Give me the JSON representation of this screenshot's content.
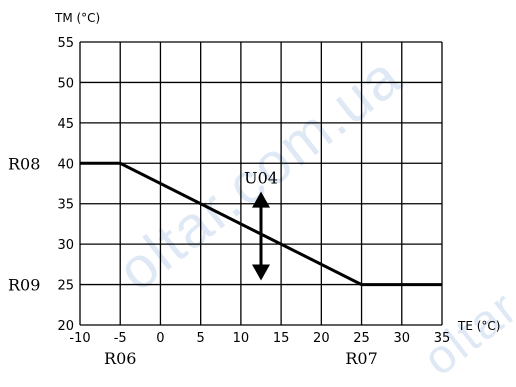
{
  "chart_data": {
    "type": "line",
    "ylabel": "TM (°C)",
    "xlabel": "TE (°C)",
    "xlim": [
      -10,
      35
    ],
    "ylim": [
      20,
      55
    ],
    "x_ticks": [
      -10,
      -5,
      0,
      5,
      10,
      15,
      20,
      25,
      30,
      35
    ],
    "y_ticks": [
      20,
      25,
      30,
      35,
      40,
      45,
      50,
      55
    ],
    "x_tick_labels": [
      "-10",
      "-5",
      "0",
      "5",
      "10",
      "15",
      "20",
      "25",
      "30",
      "35"
    ],
    "y_tick_labels": [
      "20",
      "25",
      "30",
      "35",
      "40",
      "45",
      "50",
      "55"
    ],
    "grid": true,
    "series": [
      {
        "x": [
          -10,
          -5,
          25,
          35
        ],
        "y": [
          40,
          40,
          25,
          25
        ],
        "color": "#000000"
      }
    ],
    "annotations": {
      "R08": "R08",
      "R09": "R09",
      "R06": "R06",
      "R07": "R07",
      "U04": "U04"
    },
    "shift_arrow": {
      "x": 12.5,
      "y_from": 26,
      "y_to": 36
    }
  },
  "watermark": {
    "text": "oltar.com.ua",
    "color": "#dfe8f5"
  }
}
